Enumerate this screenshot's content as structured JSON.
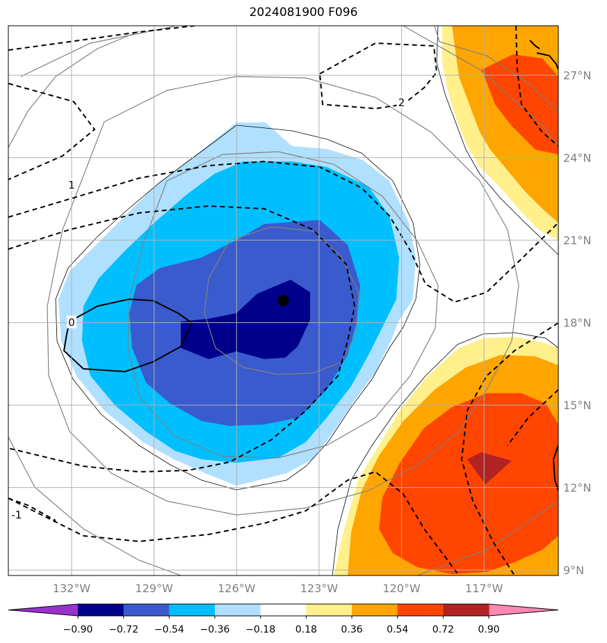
{
  "title": "2024081900 F096",
  "chart_data": {
    "type": "heatmap",
    "title": "2024081900 F096",
    "xlabel": "",
    "ylabel": "",
    "xlim": [
      -134.3,
      -114.3
    ],
    "ylim": [
      8.8,
      28.8
    ],
    "grid": true,
    "x_ticks": [
      {
        "value": -132,
        "label": "132°W"
      },
      {
        "value": -129,
        "label": "129°W"
      },
      {
        "value": -126,
        "label": "126°W"
      },
      {
        "value": -123,
        "label": "123°W"
      },
      {
        "value": -120,
        "label": "120°W"
      },
      {
        "value": -117,
        "label": "117°W"
      }
    ],
    "y_ticks": [
      {
        "value": 9,
        "label": "9°N"
      },
      {
        "value": 12,
        "label": "12°N"
      },
      {
        "value": 15,
        "label": "15°N"
      },
      {
        "value": 18,
        "label": "18°N"
      },
      {
        "value": 21,
        "label": "21°N"
      },
      {
        "value": 24,
        "label": "24°N"
      },
      {
        "value": 27,
        "label": "27°N"
      }
    ],
    "colorbar": {
      "levels": [
        "−0.90",
        "−0.72",
        "−0.54",
        "−0.36",
        "−0.18",
        "0.18",
        "0.36",
        "0.54",
        "0.72",
        "0.90"
      ],
      "level_values": [
        -0.9,
        -0.72,
        -0.54,
        -0.36,
        -0.18,
        0.18,
        0.36,
        0.54,
        0.72,
        0.9
      ],
      "colors": [
        "#9932cc",
        "#00008b",
        "#3a5bcd",
        "#00bfff",
        "#b0e0ff",
        "#ffffff",
        "#fff08c",
        "#ffa500",
        "#ff4500",
        "#b22222",
        "#ff88b4"
      ],
      "extend": "both"
    },
    "center_marker": {
      "lon": -124.3,
      "lat": 18.8
    },
    "contour_labels": [
      {
        "text": "2",
        "lon": -120.0,
        "lat": 26.0
      },
      {
        "text": "1",
        "lon": -132.0,
        "lat": 23.0
      },
      {
        "text": "0",
        "lon": -132.0,
        "lat": 18.0
      },
      {
        "text": "-1",
        "lon": -134.0,
        "lat": 11.0
      }
    ]
  }
}
